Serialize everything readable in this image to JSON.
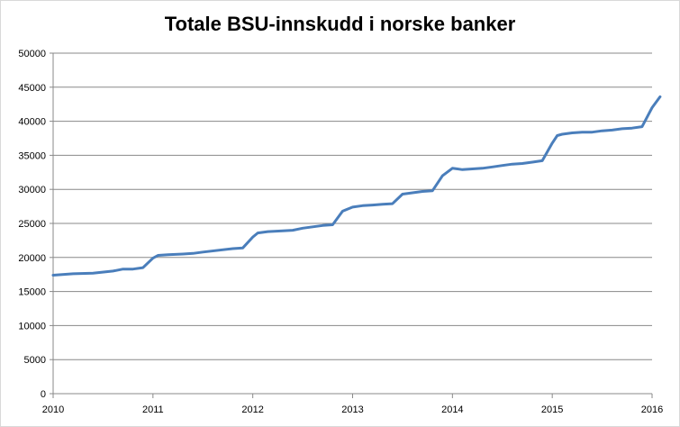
{
  "chart_data": {
    "type": "line",
    "title": "Totale BSU-innskudd i norske banker",
    "xlabel": "",
    "ylabel": "",
    "xlim": [
      2010,
      2016
    ],
    "ylim": [
      0,
      50000
    ],
    "grid": true,
    "legend": "none",
    "x_ticks": [
      "2010",
      "2011",
      "2012",
      "2013",
      "2014",
      "2015",
      "2016"
    ],
    "y_ticks": [
      "0",
      "5000",
      "10000",
      "15000",
      "20000",
      "25000",
      "30000",
      "35000",
      "40000",
      "45000",
      "50000"
    ],
    "colors": {
      "line": "#4a7ebb",
      "grid": "#888888"
    },
    "series": [
      {
        "x": [
          2010.0,
          2010.2,
          2010.4,
          2010.6,
          2010.7,
          2010.8,
          2010.9,
          2011.0,
          2011.05,
          2011.15,
          2011.3,
          2011.4,
          2011.5,
          2011.8,
          2011.9,
          2012.0,
          2012.05,
          2012.15,
          2012.3,
          2012.4,
          2012.5,
          2012.6,
          2012.7,
          2012.8,
          2012.9,
          2013.0,
          2013.1,
          2013.2,
          2013.3,
          2013.4,
          2013.5,
          2013.6,
          2013.7,
          2013.8,
          2013.9,
          2014.0,
          2014.05,
          2014.1,
          2014.2,
          2014.3,
          2014.4,
          2014.5,
          2014.6,
          2014.7,
          2014.8,
          2014.9,
          2015.0,
          2015.05,
          2015.1,
          2015.2,
          2015.3,
          2015.4,
          2015.5,
          2015.6,
          2015.7,
          2015.8,
          2015.9,
          2016.0,
          2016.08
        ],
        "y": [
          17400,
          17600,
          17700,
          18000,
          18300,
          18300,
          18500,
          19900,
          20300,
          20400,
          20500,
          20600,
          20800,
          21300,
          21400,
          23000,
          23600,
          23800,
          23900,
          24000,
          24300,
          24500,
          24700,
          24800,
          26800,
          27400,
          27600,
          27700,
          27800,
          27900,
          29300,
          29500,
          29700,
          29800,
          32000,
          33100,
          33000,
          32900,
          33000,
          33100,
          33300,
          33500,
          33700,
          33800,
          34000,
          34200,
          36800,
          37900,
          38100,
          38300,
          38400,
          38400,
          38600,
          38700,
          38900,
          39000,
          39200,
          42000,
          43600
        ]
      }
    ]
  }
}
